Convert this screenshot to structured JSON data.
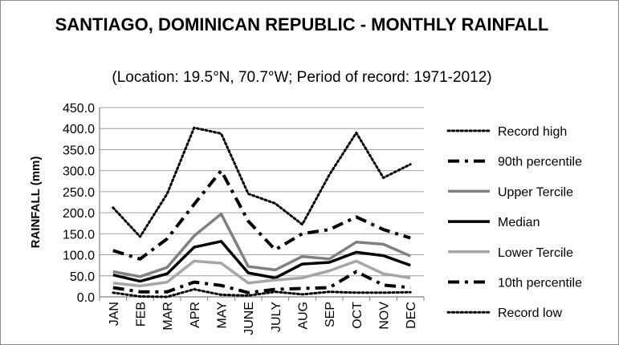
{
  "chart_data": {
    "type": "line",
    "title": "SANTIAGO, DOMINICAN REPUBLIC - MONTHLY RAINFALL",
    "subtitle": "(Location: 19.5°N, 70.7°W; Period of record: 1971-2012)",
    "xlabel": "",
    "ylabel": "RAINFALL (mm)",
    "categories": [
      "JAN",
      "FEB",
      "MAR",
      "APR",
      "MAY",
      "JUNE",
      "JULY",
      "AUG",
      "SEP",
      "OCT",
      "NOV",
      "DEC"
    ],
    "y_ticks": [
      "0.0",
      "50.0",
      "100.0",
      "150.0",
      "200.0",
      "250.0",
      "300.0",
      "350.0",
      "400.0",
      "450.0"
    ],
    "ylim": [
      0,
      450
    ],
    "grid": true,
    "legend_position": "right",
    "series": [
      {
        "name": "Record high",
        "style": "dotted",
        "color": "#000000",
        "values": [
          212,
          143,
          245,
          402,
          388,
          245,
          222,
          172,
          290,
          390,
          283,
          315
        ]
      },
      {
        "name": "90th percentile",
        "style": "dash-dot",
        "color": "#000000",
        "values": [
          110,
          90,
          138,
          220,
          300,
          180,
          112,
          150,
          160,
          190,
          160,
          140
        ]
      },
      {
        "name": "Upper Tercile",
        "style": "solid",
        "color": "#808080",
        "values": [
          60,
          48,
          70,
          145,
          197,
          72,
          64,
          96,
          90,
          130,
          125,
          97
        ]
      },
      {
        "name": "Median",
        "style": "solid",
        "color": "#000000",
        "values": [
          52,
          37,
          55,
          118,
          132,
          57,
          45,
          78,
          82,
          106,
          98,
          75
        ]
      },
      {
        "name": "Lower Tercile",
        "style": "solid",
        "color": "#a6a6a6",
        "values": [
          33,
          26,
          35,
          85,
          80,
          33,
          40,
          45,
          62,
          85,
          55,
          45
        ]
      },
      {
        "name": "10th percentile",
        "style": "dash-dot",
        "color": "#000000",
        "values": [
          22,
          12,
          12,
          35,
          27,
          10,
          18,
          20,
          22,
          60,
          28,
          22
        ]
      },
      {
        "name": "Record low",
        "style": "dotted",
        "color": "#000000",
        "values": [
          10,
          1,
          0,
          18,
          5,
          3,
          12,
          6,
          12,
          10,
          10,
          11
        ]
      }
    ]
  }
}
